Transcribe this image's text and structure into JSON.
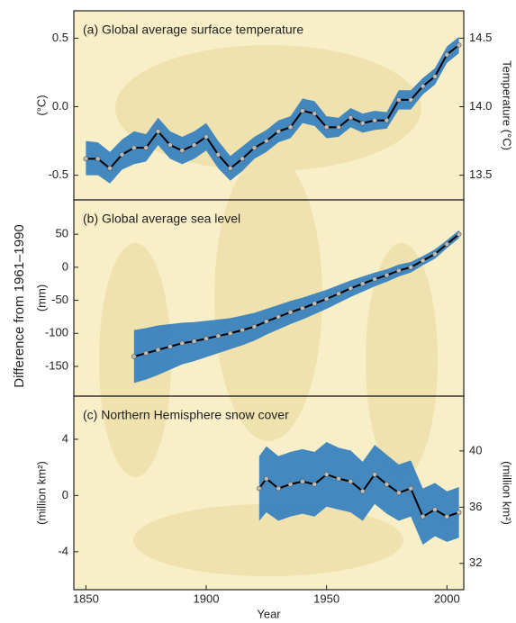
{
  "y_axis_label": "Difference from 1961–1990",
  "chart_data": [
    {
      "type": "line",
      "title": "(a) Global average surface temperature",
      "ylabel": "(°C)",
      "y2label": "Temperature (°C)",
      "xlim": [
        1845,
        2007
      ],
      "ylim": [
        -0.68,
        0.7
      ],
      "y2lim": [
        13.32,
        14.7
      ],
      "yticks": [
        0.5,
        {
          "value": 0,
          "label": "0.0"
        },
        {
          "value": -0.5,
          "label": "-0.5"
        }
      ],
      "y2ticks": [
        14.5,
        {
          "value": 14,
          "label": "14.0"
        },
        13.5
      ],
      "line_color": "#000000",
      "band_color": "#2f7dbf",
      "x": [
        1850,
        1855,
        1860,
        1865,
        1870,
        1875,
        1880,
        1885,
        1890,
        1895,
        1900,
        1905,
        1910,
        1915,
        1920,
        1925,
        1930,
        1935,
        1940,
        1945,
        1950,
        1955,
        1960,
        1965,
        1970,
        1975,
        1980,
        1985,
        1990,
        1995,
        2000,
        2005
      ],
      "values": [
        -0.38,
        -0.38,
        -0.45,
        -0.35,
        -0.3,
        -0.3,
        -0.18,
        -0.28,
        -0.32,
        -0.28,
        -0.22,
        -0.35,
        -0.45,
        -0.38,
        -0.3,
        -0.25,
        -0.18,
        -0.15,
        -0.03,
        -0.05,
        -0.15,
        -0.15,
        -0.08,
        -0.12,
        -0.1,
        -0.1,
        0.05,
        0.05,
        0.15,
        0.22,
        0.38,
        0.45
      ],
      "lower": [
        -0.5,
        -0.5,
        -0.56,
        -0.46,
        -0.42,
        -0.4,
        -0.28,
        -0.38,
        -0.42,
        -0.38,
        -0.32,
        -0.45,
        -0.54,
        -0.47,
        -0.38,
        -0.33,
        -0.26,
        -0.23,
        -0.12,
        -0.14,
        -0.23,
        -0.22,
        -0.15,
        -0.19,
        -0.17,
        -0.16,
        -0.02,
        -0.02,
        0.09,
        0.16,
        0.32,
        0.39
      ],
      "upper": [
        -0.25,
        -0.26,
        -0.33,
        -0.24,
        -0.18,
        -0.2,
        -0.08,
        -0.18,
        -0.22,
        -0.18,
        -0.12,
        -0.25,
        -0.36,
        -0.29,
        -0.22,
        -0.17,
        -0.1,
        -0.07,
        0.06,
        0.04,
        -0.07,
        -0.08,
        -0.01,
        -0.05,
        -0.03,
        -0.04,
        0.12,
        0.12,
        0.21,
        0.28,
        0.44,
        0.51
      ]
    },
    {
      "type": "line",
      "title": "(b) Global average sea level",
      "ylabel": "(mm)",
      "xlim": [
        1845,
        2007
      ],
      "ylim": [
        -195,
        102
      ],
      "yticks": [
        50,
        0,
        -50,
        -100,
        -150
      ],
      "line_color": "#000000",
      "band_color": "#2f7dbf",
      "x": [
        1870,
        1875,
        1880,
        1885,
        1890,
        1895,
        1900,
        1905,
        1910,
        1915,
        1920,
        1925,
        1930,
        1935,
        1940,
        1945,
        1950,
        1955,
        1960,
        1965,
        1970,
        1975,
        1980,
        1985,
        1990,
        1995,
        2000,
        2005
      ],
      "values": [
        -135,
        -130,
        -125,
        -120,
        -115,
        -112,
        -108,
        -104,
        -100,
        -95,
        -90,
        -82,
        -75,
        -68,
        -62,
        -55,
        -48,
        -40,
        -32,
        -25,
        -18,
        -12,
        -5,
        0,
        10,
        20,
        35,
        50
      ],
      "lower": [
        -175,
        -170,
        -163,
        -155,
        -147,
        -142,
        -136,
        -130,
        -124,
        -118,
        -111,
        -102,
        -94,
        -86,
        -79,
        -71,
        -63,
        -54,
        -45,
        -37,
        -29,
        -22,
        -14,
        -8,
        3,
        13,
        29,
        44
      ],
      "upper": [
        -95,
        -92,
        -88,
        -86,
        -84,
        -83,
        -81,
        -79,
        -77,
        -73,
        -69,
        -63,
        -57,
        -51,
        -46,
        -40,
        -34,
        -27,
        -20,
        -14,
        -8,
        -3,
        4,
        8,
        17,
        27,
        41,
        56
      ]
    },
    {
      "type": "line",
      "title": "(c) Northern Hemisphere snow cover",
      "ylabel": "(million km²)",
      "y2label": "(million km²)",
      "xlabel": "Year",
      "xlim": [
        1845,
        2007
      ],
      "ylim": [
        -6.7,
        7.07
      ],
      "y2lim": [
        30.13,
        43.9
      ],
      "xticks": [
        1850,
        1900,
        1950,
        2000
      ],
      "yticks": [
        4,
        0,
        -4
      ],
      "y2ticks": [
        40,
        36,
        32
      ],
      "line_color": "#000000",
      "band_color": "#2f7dbf",
      "x": [
        1922,
        1925,
        1930,
        1935,
        1940,
        1945,
        1950,
        1955,
        1960,
        1965,
        1970,
        1975,
        1980,
        1985,
        1990,
        1995,
        2000,
        2005
      ],
      "values": [
        0.5,
        1.2,
        0.5,
        0.8,
        1.0,
        0.8,
        1.5,
        1.2,
        1.0,
        0.3,
        1.5,
        0.8,
        0.2,
        0.5,
        -1.5,
        -1.0,
        -1.5,
        -1.2
      ],
      "lower": [
        -1.8,
        -1.2,
        -1.8,
        -1.5,
        -1.3,
        -1.5,
        -0.8,
        -1.0,
        -1.2,
        -1.8,
        -0.6,
        -1.3,
        -1.8,
        -1.5,
        -3.5,
        -2.9,
        -3.3,
        -3.0
      ],
      "upper": [
        2.8,
        3.5,
        2.8,
        3.1,
        3.3,
        3.1,
        3.8,
        3.4,
        3.2,
        2.4,
        3.6,
        2.9,
        2.2,
        2.5,
        0.5,
        0.9,
        0.3,
        0.6
      ]
    }
  ]
}
